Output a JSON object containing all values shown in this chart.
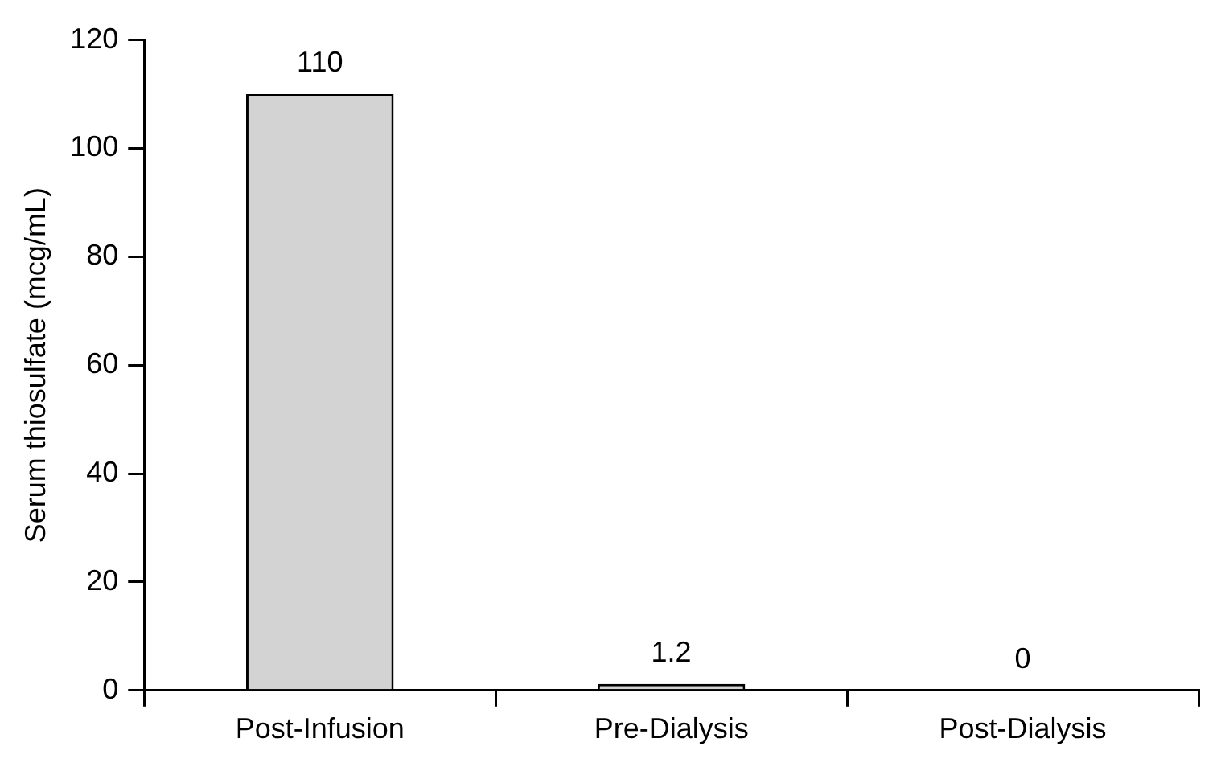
{
  "chart_data": {
    "type": "bar",
    "ylabel": "Serum thiosulfate (mcg/mL)",
    "categories": [
      "Post-Infusion",
      "Pre-Dialysis",
      "Post-Dialysis"
    ],
    "values": [
      110,
      1.2,
      0
    ],
    "color": "#d3d3d3",
    "ylim": [
      0,
      120
    ],
    "yticks": [
      0,
      20,
      40,
      60,
      80,
      100,
      120
    ],
    "grid": false,
    "data_labels": true,
    "legend": false
  }
}
